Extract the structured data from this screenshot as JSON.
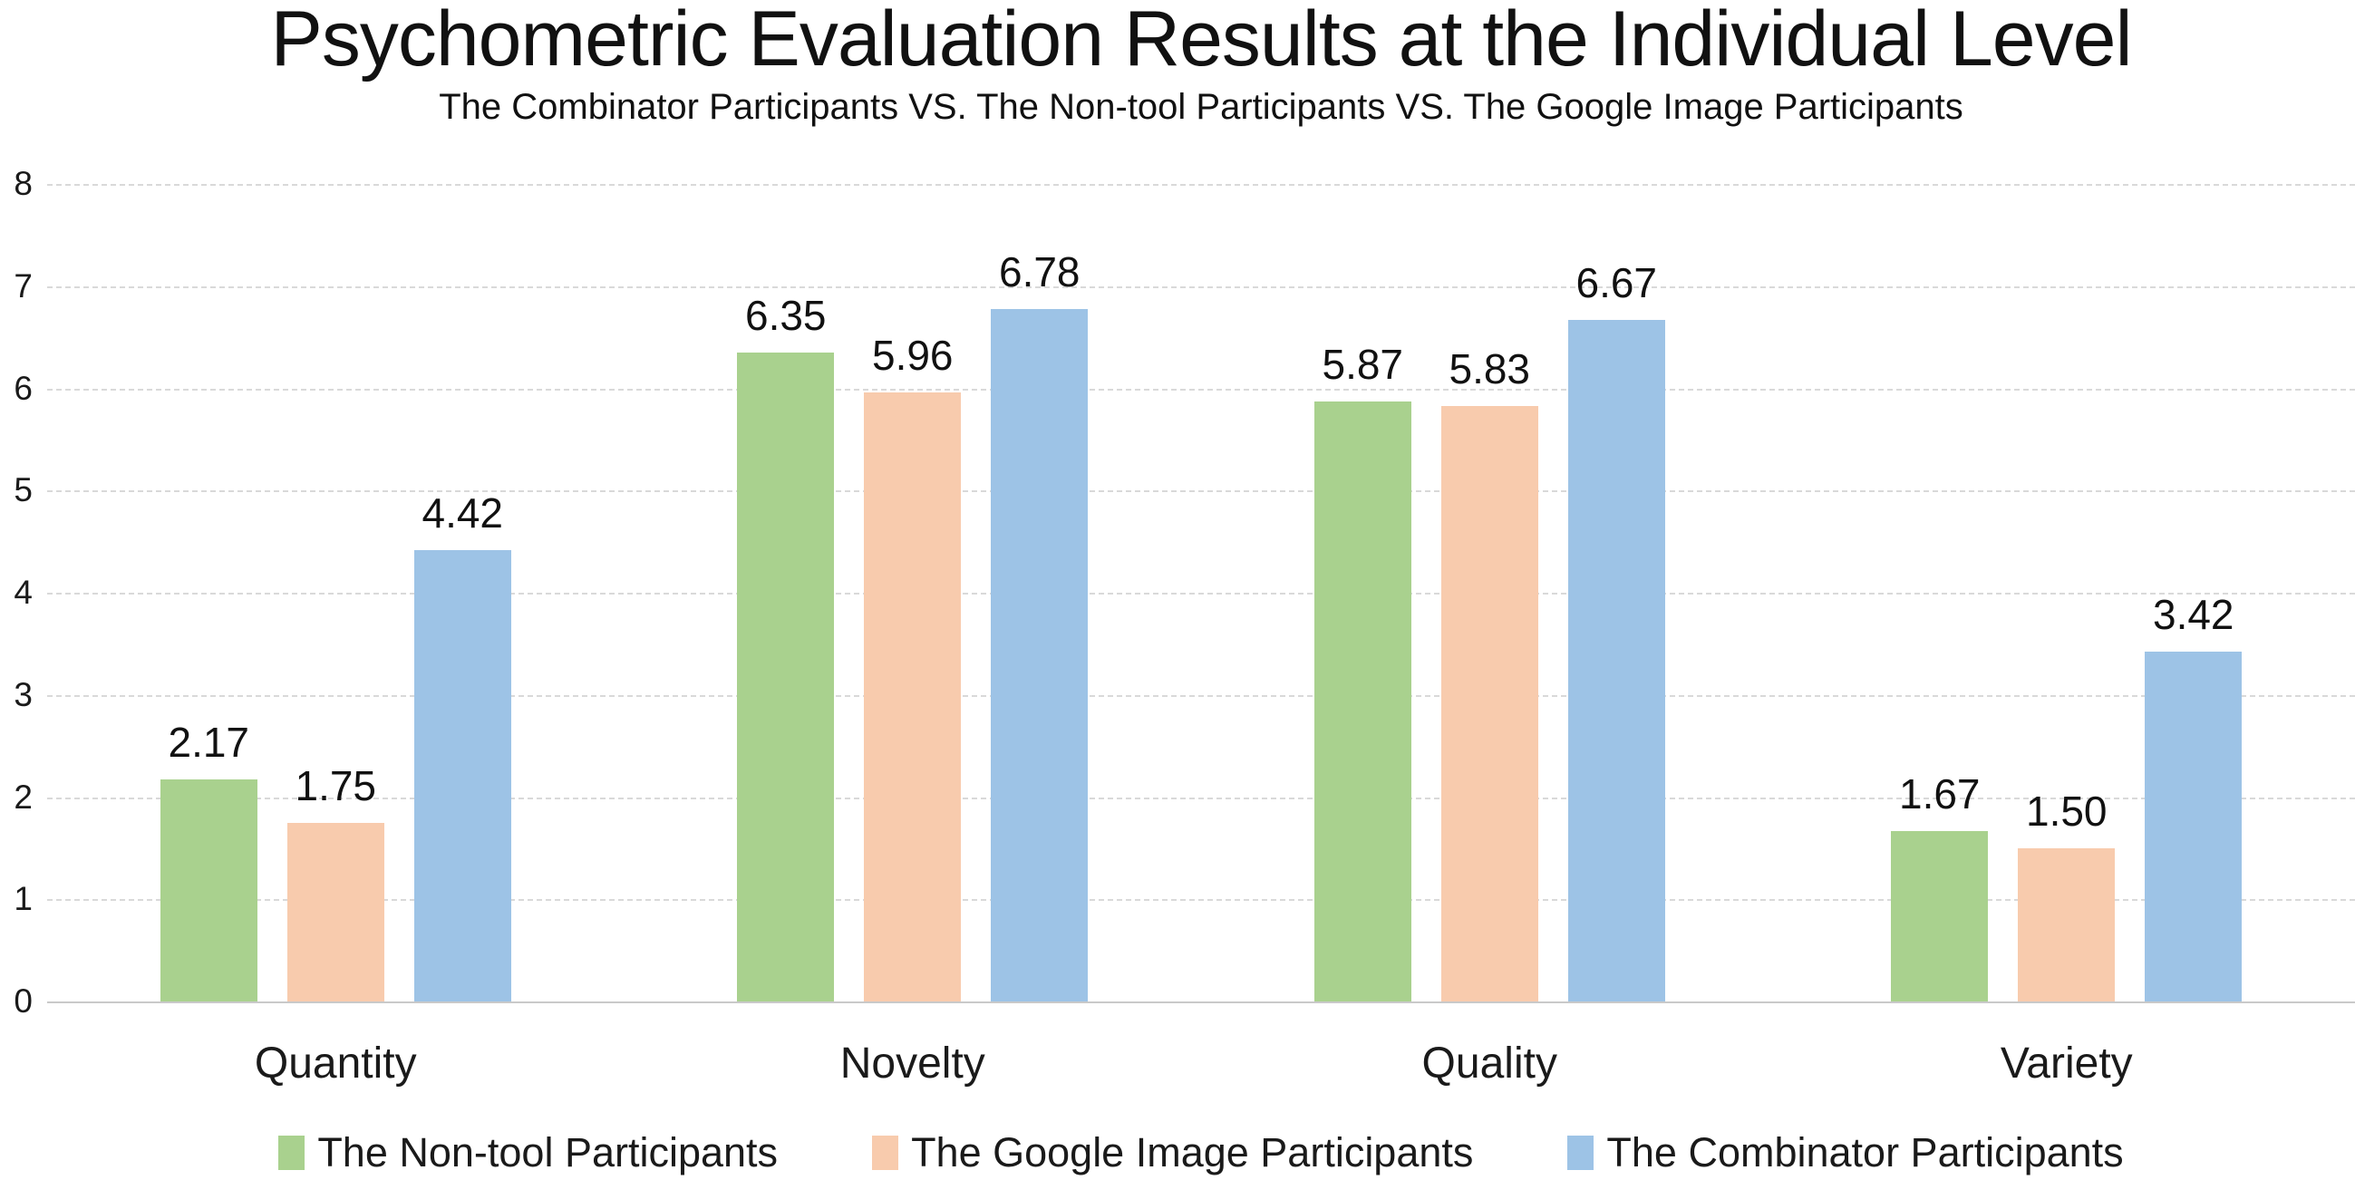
{
  "chart_data": {
    "type": "bar",
    "title": "Psychometric Evaluation Results at the Individual Level",
    "subtitle": "The Combinator Participants VS. The Non-tool Participants VS. The Google Image Participants",
    "categories": [
      "Quantity",
      "Novelty",
      "Quality",
      "Variety"
    ],
    "series": [
      {
        "name": "The Non-tool Participants",
        "color": "#A9D18E",
        "values": [
          2.17,
          6.35,
          5.87,
          1.67
        ]
      },
      {
        "name": "The Google Image Participants",
        "color": "#F8CBAD",
        "values": [
          1.75,
          5.96,
          5.83,
          1.5
        ]
      },
      {
        "name": "The Combinator Participants",
        "color": "#9DC3E6",
        "values": [
          4.42,
          6.78,
          6.67,
          3.42
        ]
      }
    ],
    "value_label_decimals": 2,
    "xlabel": "",
    "ylabel": "",
    "ylim": [
      0,
      8
    ],
    "yticks": [
      0,
      1,
      2,
      3,
      4,
      5,
      6,
      7,
      8
    ],
    "grid": true,
    "gridline_color": "#d9d9d9",
    "baseline_color": "#c9c9c9",
    "legend_position": "bottom"
  }
}
